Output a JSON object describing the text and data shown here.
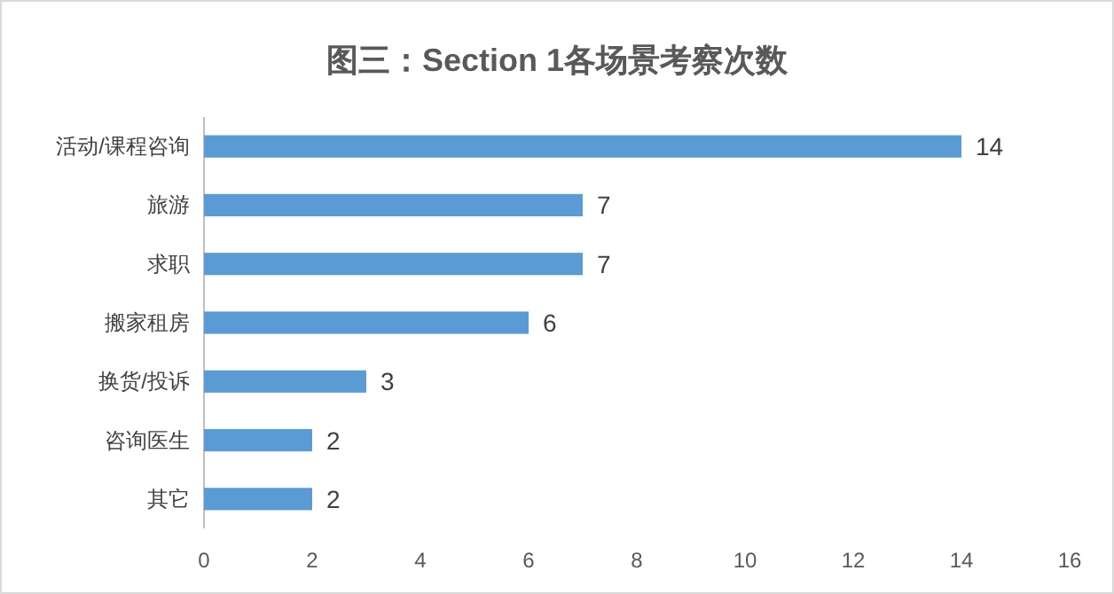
{
  "chart_data": {
    "type": "bar",
    "orientation": "horizontal",
    "title": "图三：Section 1各场景考察次数",
    "categories": [
      "活动/课程咨询",
      "旅游",
      "求职",
      "搬家租房",
      "换货/投诉",
      "咨询医生",
      "其它"
    ],
    "values": [
      14,
      7,
      7,
      6,
      3,
      2,
      2
    ],
    "color": "#5b9bd5",
    "xlim": [
      0,
      16
    ],
    "xticks": [
      0,
      2,
      4,
      6,
      8,
      10,
      12,
      14,
      16
    ],
    "grid": false,
    "data_labels": true
  }
}
